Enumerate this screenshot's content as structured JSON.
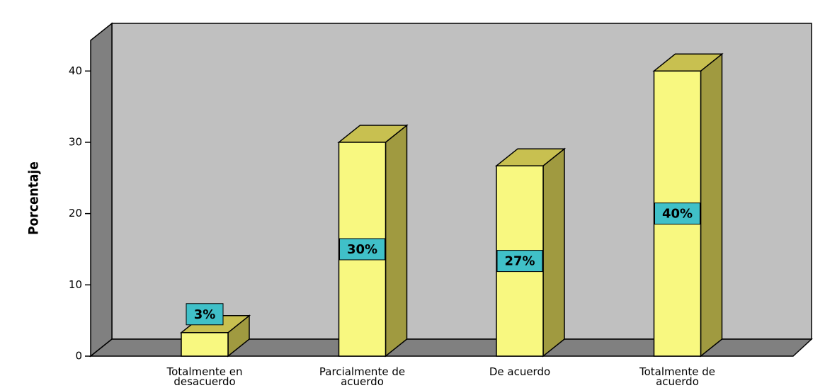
{
  "chart_data": {
    "type": "bar3d",
    "ylabel": "Porcentaje",
    "categories": [
      "Totalmente en desacuerdo",
      "Parcialmente de acuerdo",
      "De acuerdo",
      "Totalmente de acuerdo"
    ],
    "values": [
      3.3,
      30,
      26.7,
      40
    ],
    "value_labels": [
      "3%",
      "30%",
      "27%",
      "40%"
    ],
    "color": "#f8f880",
    "label_color": "#40c0c8",
    "ylim": [
      0,
      44.3
    ],
    "yticks": [
      0,
      10,
      20,
      30,
      40
    ]
  }
}
